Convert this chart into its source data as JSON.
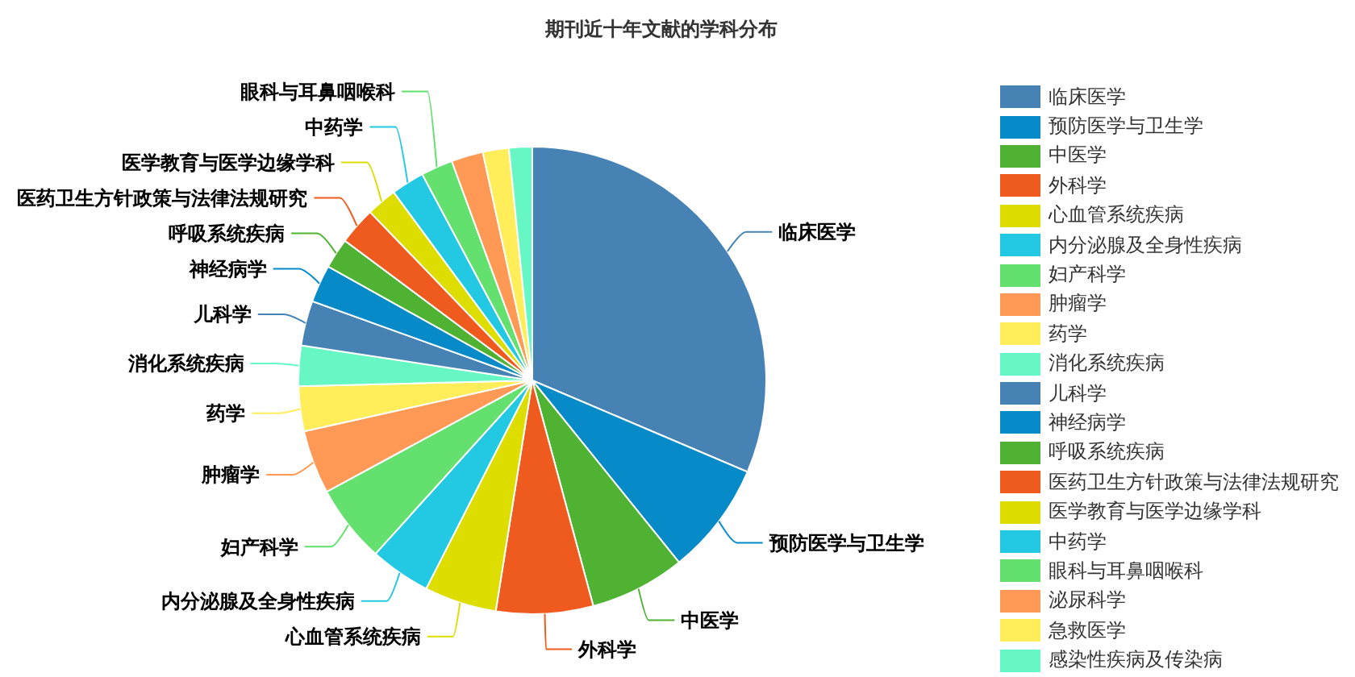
{
  "chart_data": {
    "type": "pie",
    "title": "期刊近十年文献的学科分布",
    "categories": [
      "临床医学",
      "预防医学与卫生学",
      "中医学",
      "外科学",
      "心血管系统疾病",
      "内分泌腺及全身性疾病",
      "妇产科学",
      "肿瘤学",
      "药学",
      "消化系统疾病",
      "儿科学",
      "神经病学",
      "呼吸系统疾病",
      "医药卫生方针政策与法律法规研究",
      "医学教育与医学边缘学科",
      "中药学",
      "眼科与耳鼻咽喉科",
      "泌尿科学",
      "急救医学",
      "感染性疾病及传染病"
    ],
    "values": [
      31.4,
      7.8,
      6.6,
      6.7,
      5.0,
      4.2,
      5.4,
      4.4,
      3.1,
      2.8,
      3.1,
      2.6,
      2.1,
      2.6,
      2.1,
      2.3,
      2.2,
      2.2,
      1.8,
      1.6
    ],
    "colors": [
      "#4682b4",
      "#078bc8",
      "#4fb233",
      "#ef5a1f",
      "#dddd00",
      "#23c9e2",
      "#63e06e",
      "#ff9955",
      "#ffee5a",
      "#66f7c4",
      "#4682b4",
      "#078bc8",
      "#4fb233",
      "#ef5a1f",
      "#dddd00",
      "#23c9e2",
      "#63e06e",
      "#ff9955",
      "#ffee5a",
      "#66f7c4"
    ],
    "legend": "right"
  }
}
